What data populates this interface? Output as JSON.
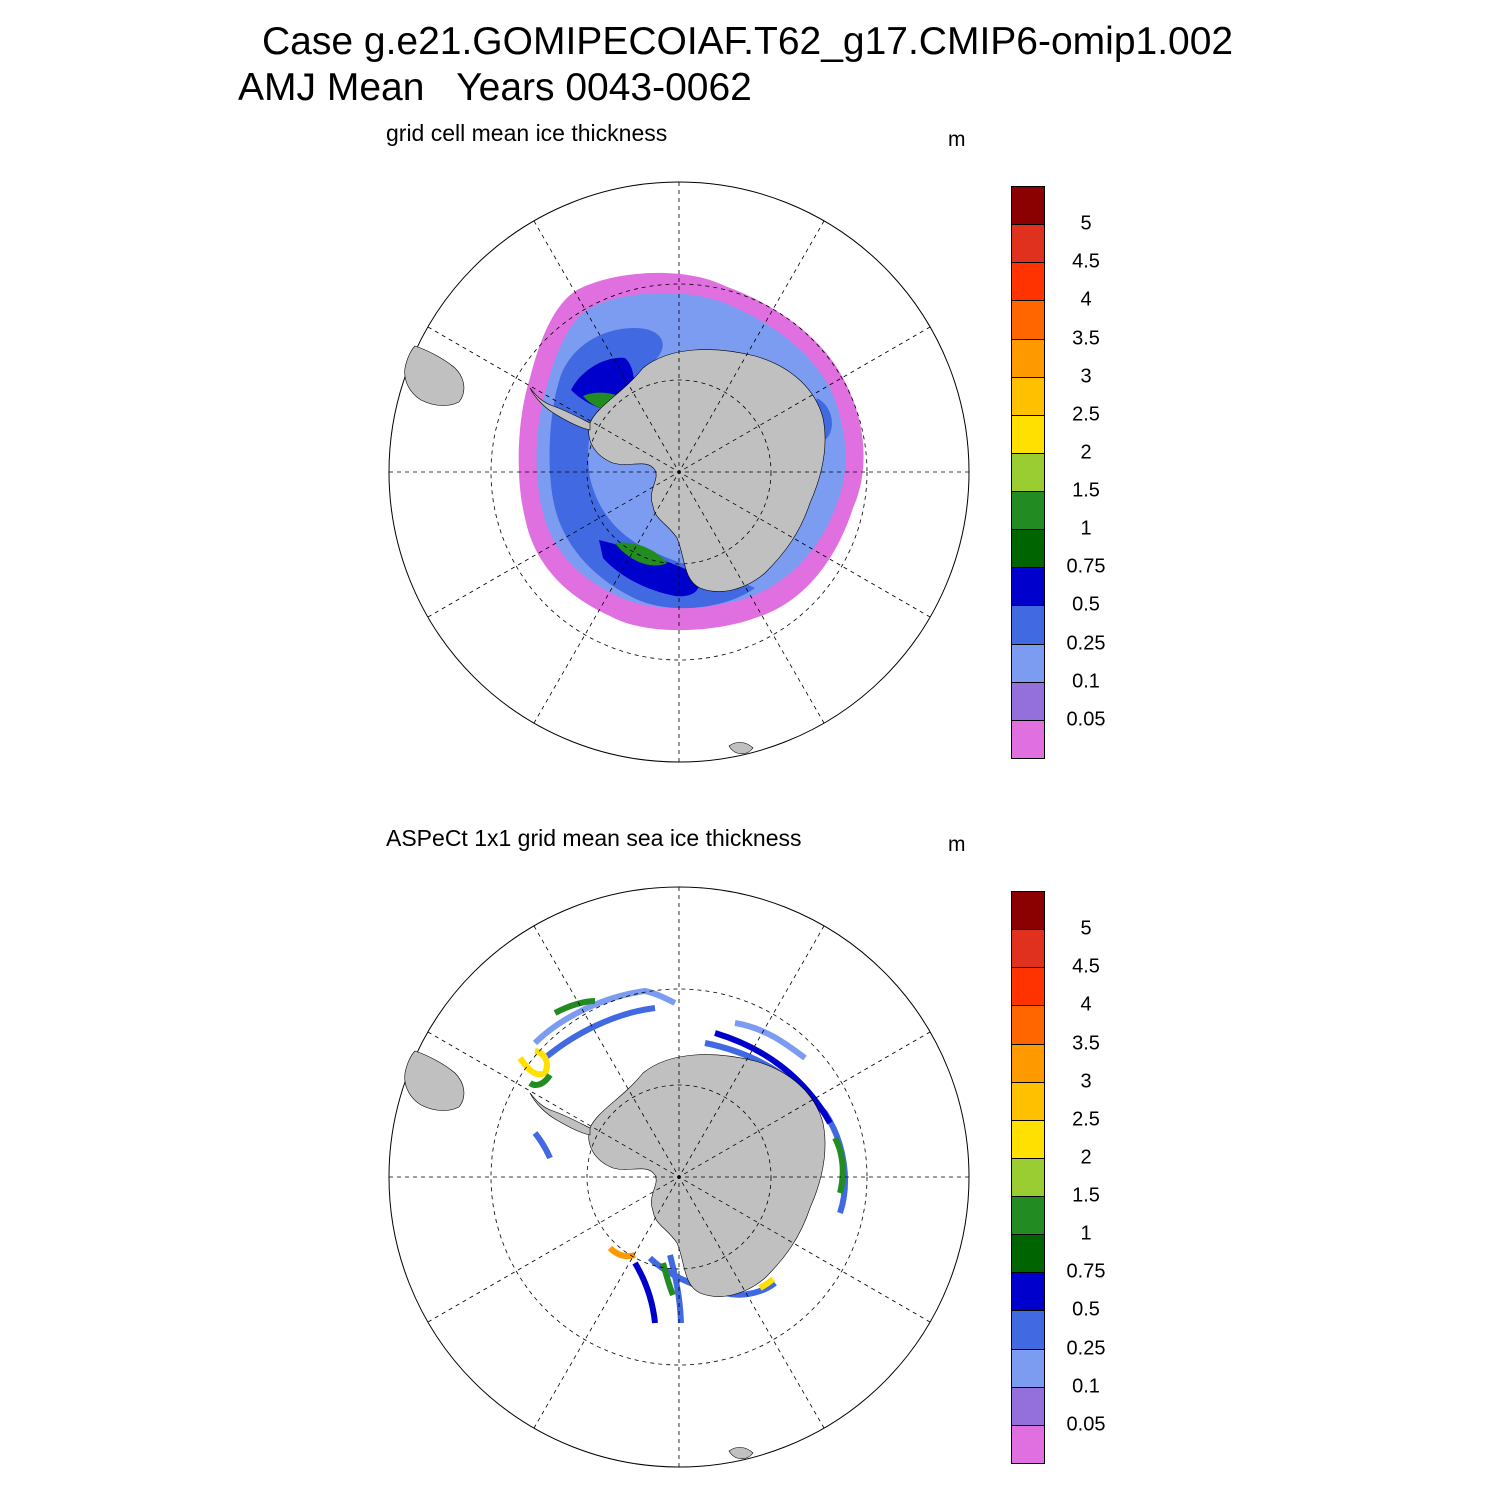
{
  "title": {
    "line1": "Case g.e21.GOMIPECOIAF.T62_g17.CMIP6-omip1.002",
    "line2": "AMJ Mean   Years 0043-0062"
  },
  "panels": [
    {
      "title": "grid cell mean ice thickness",
      "units": "m"
    },
    {
      "title": "ASPeCt 1x1 grid mean sea ice thickness",
      "units": "m"
    }
  ],
  "colorbar": {
    "labels": [
      "5",
      "4.5",
      "4",
      "3.5",
      "3",
      "2.5",
      "2",
      "1.5",
      "1",
      "0.75",
      "0.5",
      "0.25",
      "0.1",
      "0.05"
    ],
    "colors": [
      "#8b0000",
      "#e0301e",
      "#ff3300",
      "#ff6600",
      "#ff9900",
      "#ffc000",
      "#ffe000",
      "#9acd32",
      "#228b22",
      "#006400",
      "#0000cd",
      "#4169e1",
      "#7b9cf0",
      "#9370db",
      "#e070e0"
    ]
  },
  "map_colors": {
    "land": "#c0c0c0",
    "outer_edge": "#e070e0",
    "thin": "#7b9cf0",
    "medium": "#4169e1",
    "thick": "#0000cd",
    "green": "#228b22",
    "yellow": "#ffe000",
    "orange": "#ff9900"
  }
}
